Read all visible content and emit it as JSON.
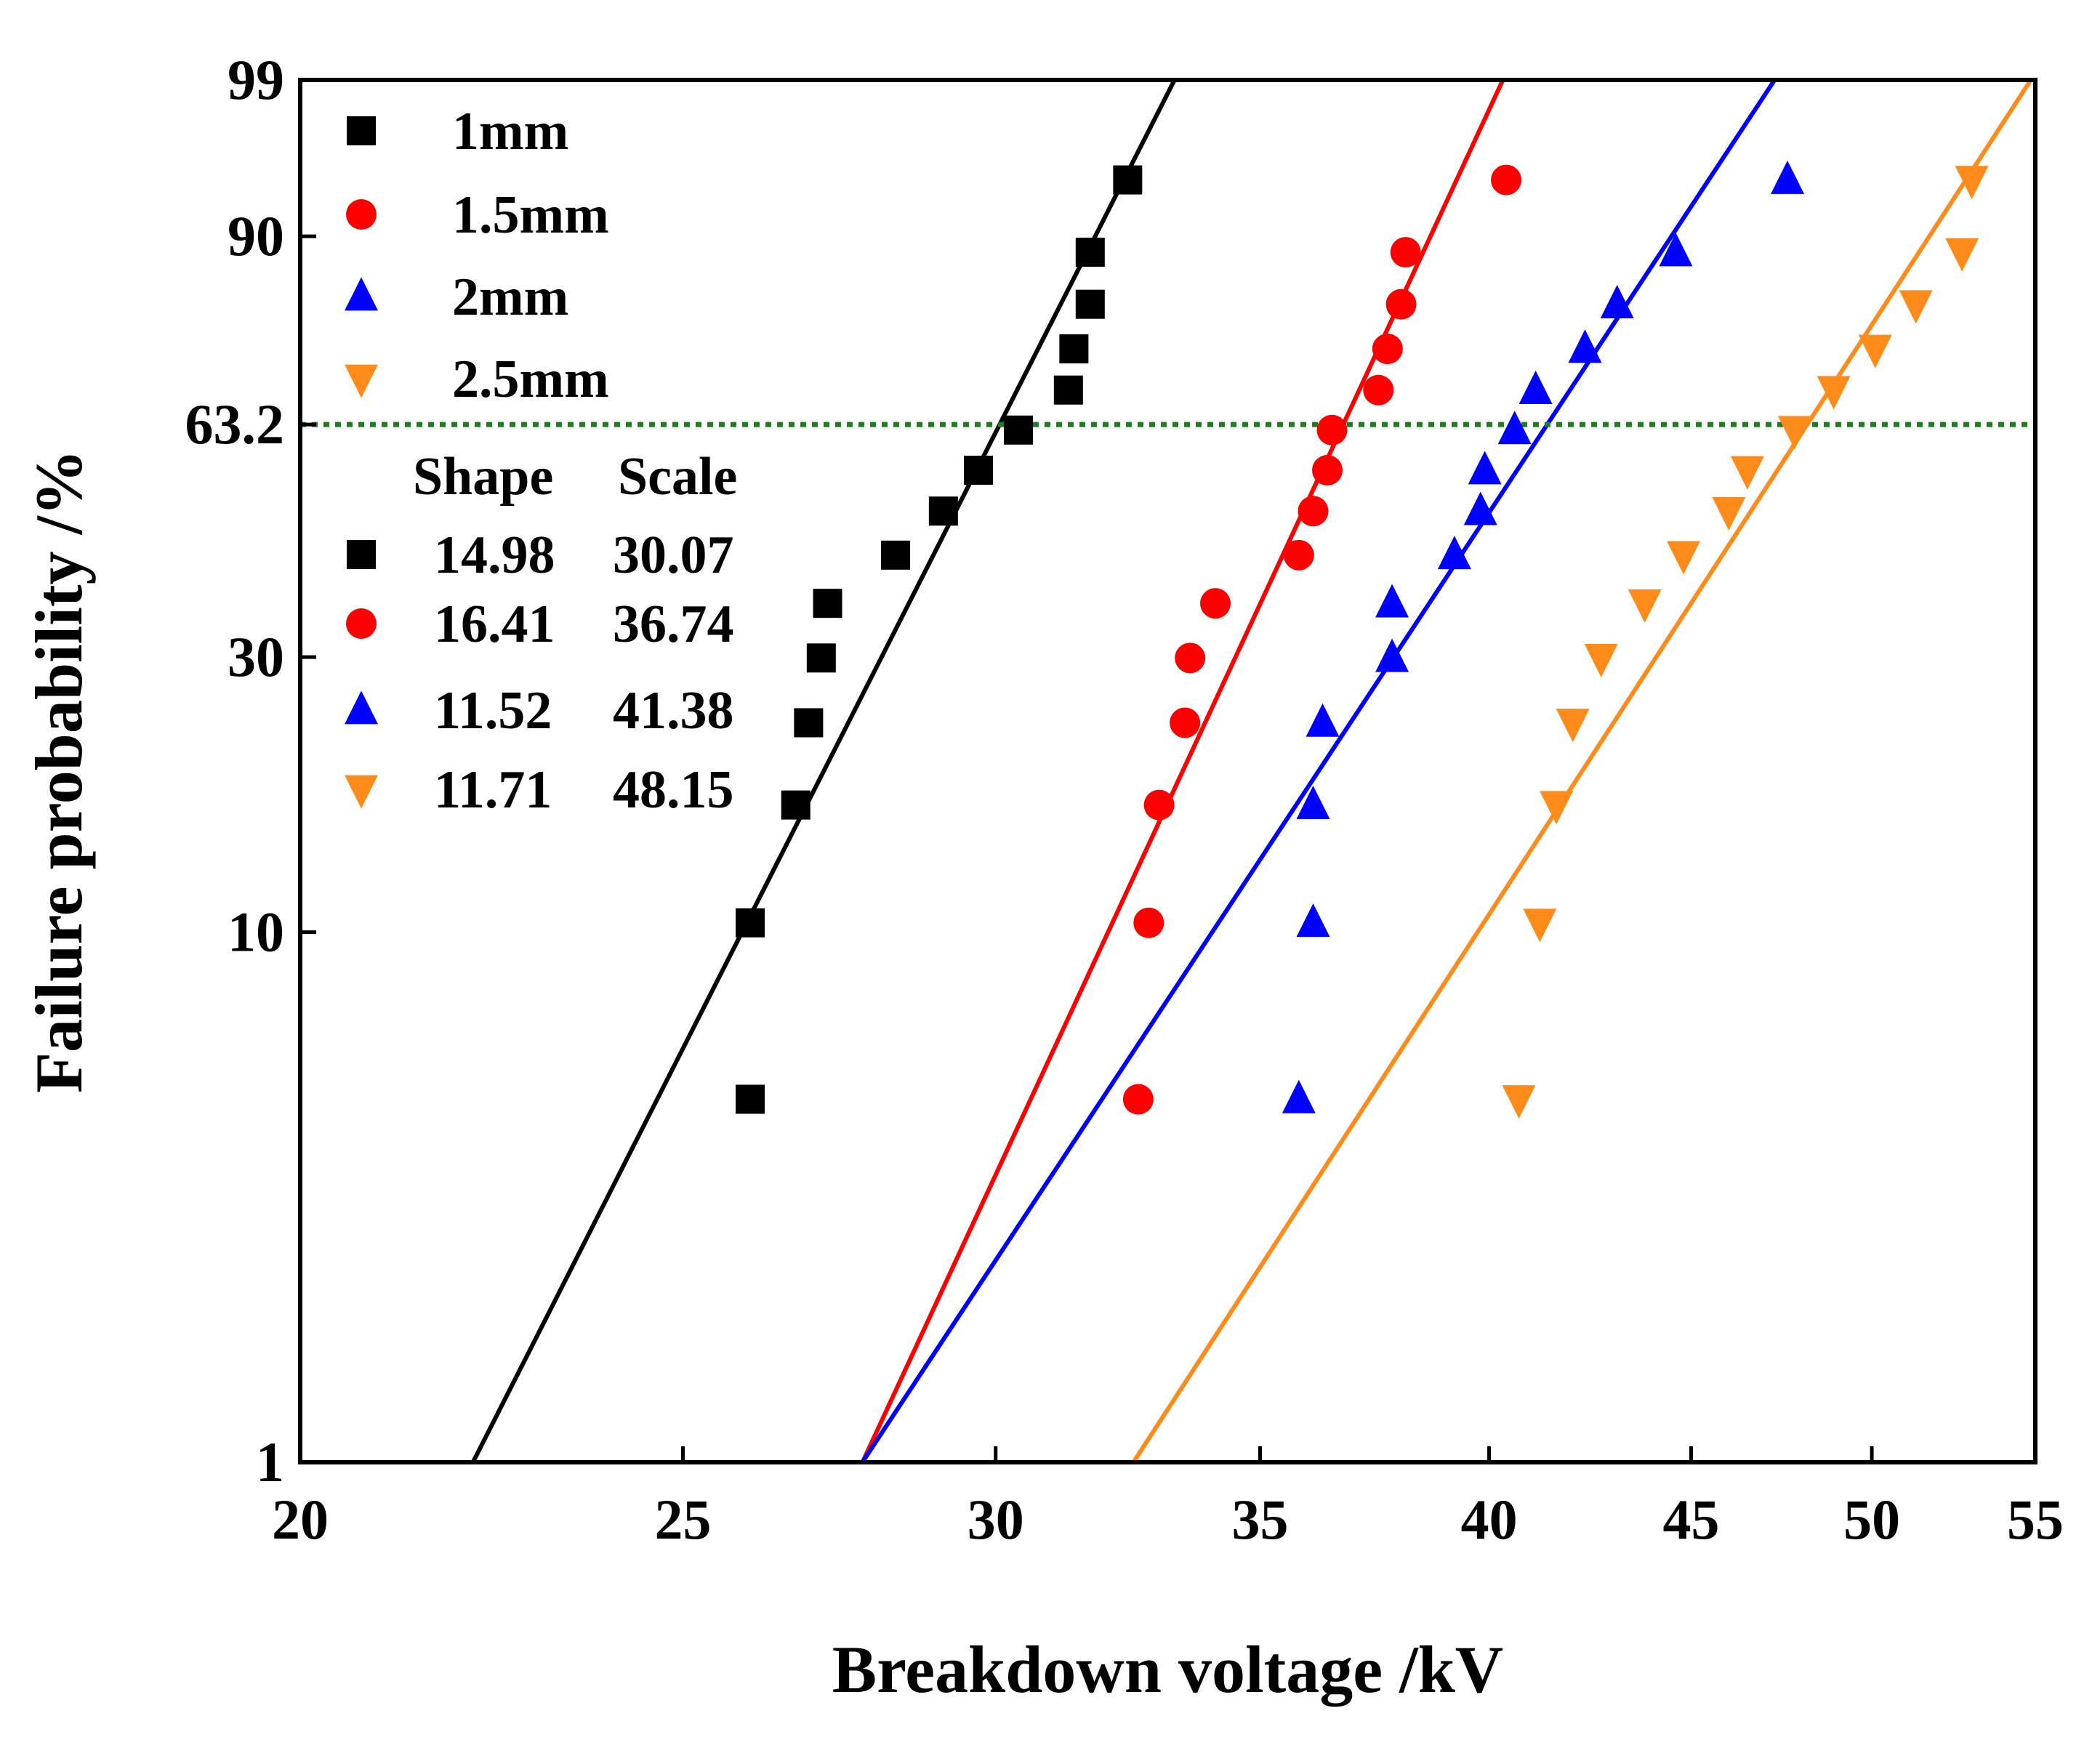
{
  "chart_data": {
    "type": "scatter",
    "title": "",
    "xlabel": "Breakdown voltage /kV",
    "ylabel": "Failure probability /%",
    "xlim": [
      20,
      55
    ],
    "x_scale": "log",
    "y_scale": "weibull",
    "ylim": [
      1,
      99
    ],
    "x_ticks": [
      20,
      25,
      30,
      35,
      40,
      45,
      50,
      55
    ],
    "y_ticks": [
      1,
      10,
      30,
      63.2,
      90,
      99
    ],
    "x_tick_labels": [
      "20",
      "25",
      "30",
      "35",
      "40",
      "45",
      "50",
      "55"
    ],
    "y_tick_labels": [
      "1",
      "10",
      "30",
      "63.2",
      "90",
      "99"
    ],
    "grid": false,
    "legend_position": "top-left",
    "reference_line": {
      "y": 63.2,
      "color": "#1e7d1e",
      "style": "dotted"
    },
    "legend_header": {
      "shape": "Shape",
      "scale": "Scale"
    },
    "series": [
      {
        "name": "1mm",
        "marker": "square",
        "color": "#000000",
        "shape": "14.98",
        "scale": "30.07",
        "x": [
          26.0,
          26.0,
          26.7,
          26.9,
          27.1,
          27.2,
          28.3,
          29.1,
          29.7,
          30.4,
          31.3,
          31.4,
          31.7,
          31.7,
          32.4
        ],
        "y": [
          4.9,
          10.4,
          16.9,
          23.4,
          29.9,
          36.4,
          42.9,
          49.4,
          55.8,
          62.3,
          68.8,
          75.3,
          81.8,
          88.3,
          94.8
        ]
      },
      {
        "name": "1.5mm",
        "marker": "circle",
        "color": "#ff0000",
        "shape": "16.41",
        "scale": "36.74",
        "x": [
          32.6,
          32.8,
          33.0,
          33.5,
          33.6,
          34.1,
          35.8,
          36.1,
          36.4,
          36.5,
          37.5,
          37.7,
          38.0,
          38.1,
          40.4
        ],
        "y": [
          4.9,
          10.4,
          16.9,
          23.4,
          29.9,
          36.4,
          42.9,
          49.4,
          55.8,
          62.3,
          68.8,
          75.3,
          81.8,
          88.3,
          94.8
        ]
      },
      {
        "name": "2mm",
        "marker": "triangle-up",
        "color": "#0000ff",
        "shape": "11.52",
        "scale": "41.38",
        "x": [
          35.8,
          36.1,
          36.1,
          36.3,
          37.8,
          37.8,
          39.2,
          39.8,
          39.9,
          40.6,
          41.1,
          42.3,
          43.1,
          44.6,
          47.6
        ],
        "y": [
          4.9,
          10.4,
          16.9,
          23.4,
          29.9,
          36.4,
          42.9,
          49.4,
          55.8,
          62.3,
          68.8,
          75.3,
          81.8,
          88.3,
          94.8
        ]
      },
      {
        "name": "2.5mm",
        "marker": "triangle-down",
        "color": "#ff8c1a",
        "shape": "11.71",
        "scale": "48.15",
        "x": [
          40.7,
          41.2,
          41.6,
          42.0,
          42.7,
          43.8,
          44.8,
          46.0,
          46.5,
          47.8,
          48.9,
          50.1,
          51.3,
          52.7,
          53.0
        ],
        "y": [
          4.9,
          10.4,
          16.9,
          23.4,
          29.9,
          36.4,
          42.9,
          49.4,
          55.8,
          62.3,
          68.8,
          75.3,
          81.8,
          88.3,
          94.8
        ]
      }
    ]
  }
}
